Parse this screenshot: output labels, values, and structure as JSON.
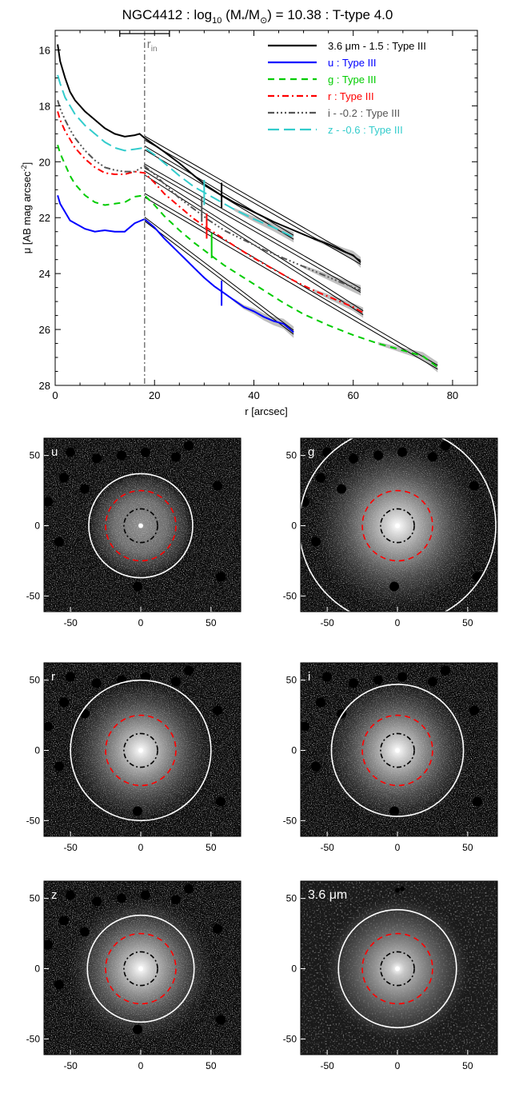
{
  "chart_data": [
    {
      "type": "line",
      "title_parts": {
        "galaxy": "NGC4412 : log",
        "sub10": "10",
        "paren_open": " (M",
        "star": "*",
        "slash": "/M",
        "sun": "⊙",
        "rest": ") = 10.38 : T-type 4.0"
      },
      "xlabel": "r [arcsec]",
      "ylabel_parts": {
        "main": "μ [AB mag arcsec",
        "sup": "-2",
        "close": "]"
      },
      "xlim": [
        0,
        85
      ],
      "ylim": [
        28,
        15.3
      ],
      "y_inverted": true,
      "xticks": [
        0,
        20,
        40,
        60,
        80
      ],
      "yticks": [
        16,
        18,
        20,
        22,
        24,
        26,
        28
      ],
      "r_in": {
        "label": "r",
        "sub": "in",
        "x": 18,
        "err_range": [
          13,
          23
        ]
      },
      "legend_position": "top-right",
      "series": [
        {
          "name": "3.6 μm - 1.5 : Type III",
          "color": "#000000",
          "dash": "solid",
          "fit_from": 18,
          "break": {
            "x": 33.5,
            "y": 21.2
          },
          "points": [
            [
              0.5,
              15.8
            ],
            [
              1,
              16.4
            ],
            [
              2,
              17.0
            ],
            [
              3,
              17.5
            ],
            [
              4,
              17.8
            ],
            [
              6,
              18.2
            ],
            [
              8,
              18.5
            ],
            [
              10,
              18.8
            ],
            [
              12,
              19.0
            ],
            [
              14,
              19.1
            ],
            [
              16,
              19.05
            ],
            [
              17,
              19.0
            ],
            [
              18,
              19.15
            ],
            [
              20,
              19.4
            ],
            [
              22,
              19.65
            ],
            [
              25,
              20.05
            ],
            [
              28,
              20.5
            ],
            [
              30,
              20.8
            ],
            [
              33,
              21.15
            ],
            [
              36,
              21.45
            ],
            [
              40,
              21.8
            ],
            [
              44,
              22.15
            ],
            [
              48,
              22.45
            ],
            [
              52,
              22.75
            ],
            [
              55,
              22.95
            ],
            [
              58,
              23.2
            ],
            [
              60,
              23.35
            ],
            [
              61.5,
              23.6
            ]
          ]
        },
        {
          "name": "u : Type III",
          "color": "#0000ff",
          "dash": "solid",
          "fit_from": 18,
          "break": {
            "x": 33.5,
            "y": 24.7
          },
          "points": [
            [
              0.5,
              21.2
            ],
            [
              1,
              21.5
            ],
            [
              2,
              21.8
            ],
            [
              3,
              22.1
            ],
            [
              4,
              22.2
            ],
            [
              5,
              22.3
            ],
            [
              6,
              22.4
            ],
            [
              8,
              22.5
            ],
            [
              10,
              22.45
            ],
            [
              12,
              22.5
            ],
            [
              14,
              22.5
            ],
            [
              16,
              22.2
            ],
            [
              18,
              22.05
            ],
            [
              20,
              22.35
            ],
            [
              22,
              22.75
            ],
            [
              24,
              23.1
            ],
            [
              26,
              23.45
            ],
            [
              28,
              23.8
            ],
            [
              30,
              24.15
            ],
            [
              32,
              24.45
            ],
            [
              34,
              24.7
            ],
            [
              36,
              24.95
            ],
            [
              38,
              25.2
            ],
            [
              40,
              25.35
            ],
            [
              42,
              25.55
            ],
            [
              44,
              25.7
            ],
            [
              46,
              25.8
            ],
            [
              48,
              26.1
            ]
          ]
        },
        {
          "name": "g : Type III",
          "color": "#00cc00",
          "dash": "8,6",
          "fit_from": 18,
          "break": {
            "x": 31.5,
            "y": 23.0
          },
          "points": [
            [
              0.5,
              19.4
            ],
            [
              1,
              19.7
            ],
            [
              2,
              20.1
            ],
            [
              3,
              20.5
            ],
            [
              4,
              20.8
            ],
            [
              6,
              21.2
            ],
            [
              8,
              21.45
            ],
            [
              10,
              21.55
            ],
            [
              12,
              21.5
            ],
            [
              14,
              21.45
            ],
            [
              16,
              21.25
            ],
            [
              18,
              21.2
            ],
            [
              20,
              21.55
            ],
            [
              22,
              21.95
            ],
            [
              25,
              22.45
            ],
            [
              28,
              22.9
            ],
            [
              31,
              23.3
            ],
            [
              34,
              23.7
            ],
            [
              38,
              24.15
            ],
            [
              42,
              24.6
            ],
            [
              46,
              25.05
            ],
            [
              50,
              25.45
            ],
            [
              55,
              25.85
            ],
            [
              60,
              26.2
            ],
            [
              65,
              26.5
            ],
            [
              70,
              26.75
            ],
            [
              74,
              26.95
            ],
            [
              77,
              27.35
            ]
          ]
        },
        {
          "name": "r : Type III",
          "color": "#ff0000",
          "dash": "8,4,2,4",
          "fit_from": 18,
          "break": {
            "x": 30.5,
            "y": 22.3
          },
          "points": [
            [
              0.5,
              18.2
            ],
            [
              1,
              18.5
            ],
            [
              2,
              18.9
            ],
            [
              3,
              19.2
            ],
            [
              4,
              19.5
            ],
            [
              6,
              19.9
            ],
            [
              8,
              20.2
            ],
            [
              10,
              20.4
            ],
            [
              12,
              20.45
            ],
            [
              14,
              20.45
            ],
            [
              16,
              20.35
            ],
            [
              18,
              20.4
            ],
            [
              20,
              20.75
            ],
            [
              22,
              21.15
            ],
            [
              25,
              21.6
            ],
            [
              28,
              22.05
            ],
            [
              30,
              22.3
            ],
            [
              33,
              22.65
            ],
            [
              36,
              23.0
            ],
            [
              40,
              23.45
            ],
            [
              44,
              23.85
            ],
            [
              48,
              24.25
            ],
            [
              52,
              24.6
            ],
            [
              56,
              24.9
            ],
            [
              60,
              25.2
            ],
            [
              62,
              25.4
            ]
          ]
        },
        {
          "name": "i - -0.2 : Type III",
          "color": "#555555",
          "dash": "8,3,2,3,2,3,2,3",
          "fit_from": 18,
          "break": {
            "x": 29.5,
            "y": 21.7
          },
          "points": [
            [
              0.5,
              17.8
            ],
            [
              1,
              18.1
            ],
            [
              2,
              18.5
            ],
            [
              3,
              18.85
            ],
            [
              4,
              19.15
            ],
            [
              6,
              19.6
            ],
            [
              8,
              19.95
            ],
            [
              10,
              20.2
            ],
            [
              12,
              20.3
            ],
            [
              14,
              20.35
            ],
            [
              16,
              20.35
            ],
            [
              18,
              20.15
            ],
            [
              20,
              20.45
            ],
            [
              22,
              20.8
            ],
            [
              25,
              21.3
            ],
            [
              28,
              21.7
            ],
            [
              31,
              22.1
            ],
            [
              34,
              22.45
            ],
            [
              38,
              22.8
            ],
            [
              42,
              23.15
            ],
            [
              46,
              23.45
            ],
            [
              50,
              23.75
            ],
            [
              54,
              24.05
            ],
            [
              58,
              24.35
            ],
            [
              61.5,
              24.6
            ]
          ]
        },
        {
          "name": "z - -0.6 : Type III",
          "color": "#33cccc",
          "dash": "14,6",
          "fit_from": 18,
          "break": {
            "x": 30.0,
            "y": 21.1
          },
          "points": [
            [
              0.5,
              16.9
            ],
            [
              1,
              17.2
            ],
            [
              2,
              17.7
            ],
            [
              3,
              18.0
            ],
            [
              4,
              18.3
            ],
            [
              6,
              18.7
            ],
            [
              8,
              19.0
            ],
            [
              10,
              19.3
            ],
            [
              12,
              19.5
            ],
            [
              14,
              19.6
            ],
            [
              16,
              19.55
            ],
            [
              18,
              19.5
            ],
            [
              20,
              19.75
            ],
            [
              22,
              20.05
            ],
            [
              25,
              20.5
            ],
            [
              28,
              20.9
            ],
            [
              30,
              21.1
            ],
            [
              33,
              21.4
            ],
            [
              36,
              21.7
            ],
            [
              40,
              22.05
            ],
            [
              44,
              22.35
            ],
            [
              48,
              22.7
            ]
          ]
        }
      ]
    },
    {
      "type": "image_panels",
      "xticks": [
        -50,
        0,
        50
      ],
      "yticks": [
        50,
        0,
        -50
      ],
      "range": [
        -70,
        70
      ],
      "colors": {
        "outer": "#ffffff",
        "mid": "#ff0000",
        "inner": "#000000"
      },
      "panels": [
        {
          "label": "u",
          "r_outer": 37,
          "r_mid": 25,
          "r_inner": 12
        },
        {
          "label": "g",
          "r_outer": 70,
          "r_mid": 25,
          "r_inner": 12
        },
        {
          "label": "r",
          "r_outer": 50,
          "r_mid": 25,
          "r_inner": 12
        },
        {
          "label": "i",
          "r_outer": 47,
          "r_mid": 25,
          "r_inner": 12
        },
        {
          "label": "z",
          "r_outer": 38,
          "r_mid": 25,
          "r_inner": 12
        },
        {
          "label": "3.6 μm",
          "r_outer": 42,
          "r_mid": 25,
          "r_inner": 12
        }
      ]
    }
  ]
}
